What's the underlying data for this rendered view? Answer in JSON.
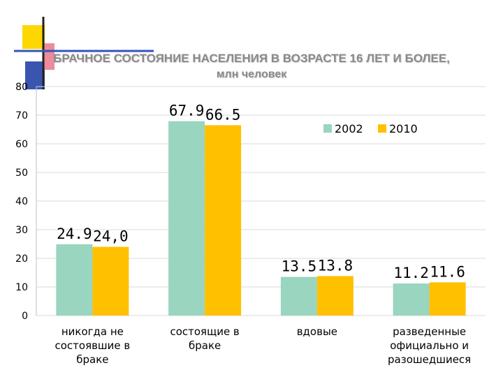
{
  "chart_data": {
    "type": "bar",
    "title": "БРАЧНОЕ СОСТОЯНИЕ НАСЕЛЕНИЯ В ВОЗРАСТЕ 16 ЛЕТ И БОЛЕЕ,",
    "subtitle": "млн человек",
    "categories": [
      [
        "никогда не",
        "состоявшие в",
        "браке"
      ],
      [
        "состоящие в",
        "браке"
      ],
      [
        "вдовые"
      ],
      [
        "разведенные",
        "официально и",
        "разошедшиеся"
      ]
    ],
    "series": [
      {
        "name": "2002",
        "values": [
          24.9,
          67.9,
          13.5,
          11.2
        ],
        "labels": [
          "24.9",
          "67.9",
          "13.5",
          "11.2"
        ],
        "color": "#99d5bf"
      },
      {
        "name": "2010",
        "values": [
          24.0,
          66.5,
          13.8,
          11.6
        ],
        "labels": [
          "24,0",
          "66.5",
          "13.8",
          "11.6"
        ],
        "color": "#ffc000"
      }
    ],
    "ylim": [
      0,
      80
    ],
    "yticks": [
      0,
      10,
      20,
      30,
      40,
      50,
      60,
      70,
      80
    ],
    "grid": true,
    "legend": "top-right"
  },
  "decor": {
    "yellow": "#ffd700",
    "blue": "#3366cc",
    "red": "#e02020"
  }
}
